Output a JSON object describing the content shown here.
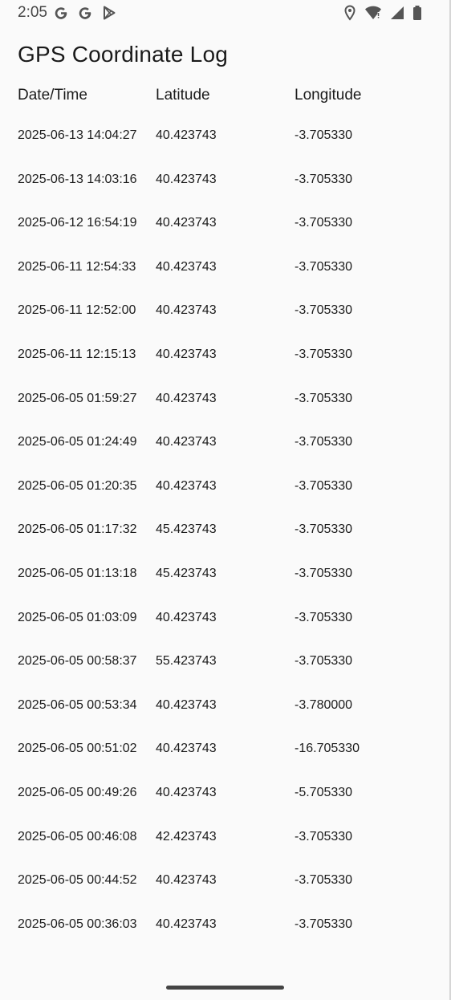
{
  "status_bar": {
    "time": "2:05",
    "left_icons": [
      "google-icon",
      "google-icon",
      "play-store-icon"
    ],
    "right_icons": [
      "location-icon",
      "wifi-icon",
      "signal-icon",
      "battery-icon"
    ]
  },
  "page": {
    "title": "GPS Coordinate Log"
  },
  "table": {
    "headers": {
      "date_time": "Date/Time",
      "latitude": "Latitude",
      "longitude": "Longitude"
    },
    "rows": [
      {
        "datetime": "2025-06-13 14:04:27",
        "latitude": "40.423743",
        "longitude": "-3.705330"
      },
      {
        "datetime": "2025-06-13 14:03:16",
        "latitude": "40.423743",
        "longitude": "-3.705330"
      },
      {
        "datetime": "2025-06-12 16:54:19",
        "latitude": "40.423743",
        "longitude": "-3.705330"
      },
      {
        "datetime": "2025-06-11 12:54:33",
        "latitude": "40.423743",
        "longitude": "-3.705330"
      },
      {
        "datetime": "2025-06-11 12:52:00",
        "latitude": "40.423743",
        "longitude": "-3.705330"
      },
      {
        "datetime": "2025-06-11 12:15:13",
        "latitude": "40.423743",
        "longitude": "-3.705330"
      },
      {
        "datetime": "2025-06-05 01:59:27",
        "latitude": "40.423743",
        "longitude": "-3.705330"
      },
      {
        "datetime": "2025-06-05 01:24:49",
        "latitude": "40.423743",
        "longitude": "-3.705330"
      },
      {
        "datetime": "2025-06-05 01:20:35",
        "latitude": "40.423743",
        "longitude": "-3.705330"
      },
      {
        "datetime": "2025-06-05 01:17:32",
        "latitude": "45.423743",
        "longitude": "-3.705330"
      },
      {
        "datetime": "2025-06-05 01:13:18",
        "latitude": "45.423743",
        "longitude": "-3.705330"
      },
      {
        "datetime": "2025-06-05 01:03:09",
        "latitude": "40.423743",
        "longitude": "-3.705330"
      },
      {
        "datetime": "2025-06-05 00:58:37",
        "latitude": "55.423743",
        "longitude": "-3.705330"
      },
      {
        "datetime": "2025-06-05 00:53:34",
        "latitude": "40.423743",
        "longitude": "-3.780000"
      },
      {
        "datetime": "2025-06-05 00:51:02",
        "latitude": "40.423743",
        "longitude": "-16.705330"
      },
      {
        "datetime": "2025-06-05 00:49:26",
        "latitude": "40.423743",
        "longitude": "-5.705330"
      },
      {
        "datetime": "2025-06-05 00:46:08",
        "latitude": "42.423743",
        "longitude": "-3.705330"
      },
      {
        "datetime": "2025-06-05 00:44:52",
        "latitude": "40.423743",
        "longitude": "-3.705330"
      },
      {
        "datetime": "2025-06-05 00:36:03",
        "latitude": "40.423743",
        "longitude": "-3.705330"
      }
    ]
  }
}
